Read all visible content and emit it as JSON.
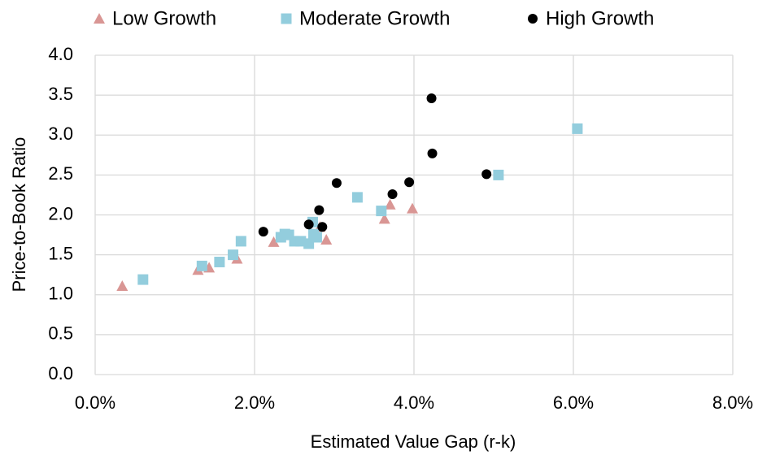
{
  "chart_data": {
    "type": "scatter",
    "x_label": "Estimated Value Gap (r-k)",
    "y_label": "Price-to-Book Ratio",
    "xlim": [
      0,
      8
    ],
    "ylim": [
      0,
      4
    ],
    "xticks": [
      {
        "value": 0,
        "label": "0.0%"
      },
      {
        "value": 2,
        "label": "2.0%"
      },
      {
        "value": 4,
        "label": "4.0%"
      },
      {
        "value": 6,
        "label": "6.0%"
      },
      {
        "value": 8,
        "label": "8.0%"
      }
    ],
    "yticks": [
      {
        "value": 0,
        "label": "0.0"
      },
      {
        "value": 0.5,
        "label": "0.5"
      },
      {
        "value": 1,
        "label": "1.0"
      },
      {
        "value": 1.5,
        "label": "1.5"
      },
      {
        "value": 2,
        "label": "2.0"
      },
      {
        "value": 2.5,
        "label": "2.5"
      },
      {
        "value": 3,
        "label": "3.0"
      },
      {
        "value": 3.5,
        "label": "3.5"
      },
      {
        "value": 4,
        "label": "4.0"
      }
    ],
    "grid": true,
    "legend": "top",
    "series": [
      {
        "name": "Low Growth",
        "color": "#d99694",
        "marker": "triangle",
        "x": [
          0.34,
          1.29,
          1.43,
          1.78,
          2.24,
          2.82,
          2.9,
          3.63,
          3.7,
          3.98
        ],
        "values": [
          1.11,
          1.31,
          1.34,
          1.45,
          1.66,
          1.85,
          1.69,
          1.95,
          2.13,
          2.08
        ]
      },
      {
        "name": "Moderate Growth",
        "color": "#93cddd",
        "marker": "square",
        "x": [
          0.6,
          1.34,
          1.56,
          1.73,
          1.83,
          2.33,
          2.38,
          2.43,
          2.5,
          2.58,
          2.68,
          2.73,
          2.74,
          2.78,
          3.29,
          3.59,
          5.06,
          6.05
        ],
        "values": [
          1.19,
          1.36,
          1.41,
          1.5,
          1.67,
          1.72,
          1.76,
          1.75,
          1.67,
          1.67,
          1.64,
          1.91,
          1.76,
          1.72,
          2.22,
          2.05,
          2.5,
          3.08
        ]
      },
      {
        "name": "High Growth",
        "color": "#000000",
        "marker": "circle",
        "x": [
          2.11,
          2.68,
          2.81,
          2.85,
          3.03,
          3.73,
          3.94,
          4.22,
          4.23,
          4.91
        ],
        "values": [
          1.79,
          1.88,
          2.06,
          1.85,
          2.4,
          2.26,
          2.41,
          3.46,
          2.77,
          2.51
        ]
      }
    ]
  }
}
